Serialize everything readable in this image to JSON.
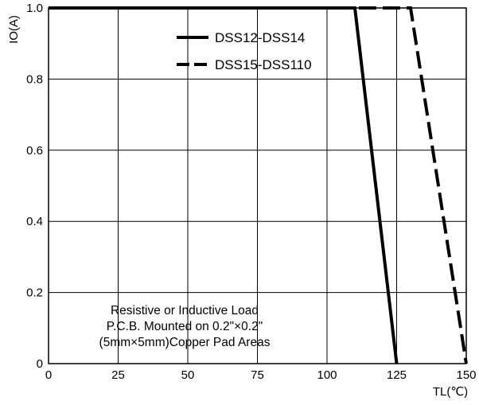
{
  "chart_data": {
    "type": "line",
    "title": "",
    "xlabel": "TL(℃)",
    "ylabel": "IO(A)",
    "xlim": [
      0,
      150
    ],
    "ylim": [
      0,
      1.0
    ],
    "xticks": [
      0,
      25,
      50,
      75,
      100,
      125,
      150
    ],
    "yticks": [
      {
        "value": 0,
        "label": "0"
      },
      {
        "value": 0.2,
        "label": "0.2"
      },
      {
        "value": 0.4,
        "label": "0.4"
      },
      {
        "value": 0.6,
        "label": "0.6"
      },
      {
        "value": 0.8,
        "label": "0.8"
      },
      {
        "value": 1.0,
        "label": "1.0"
      }
    ],
    "grid": true,
    "legend_position": "top-right",
    "series": [
      {
        "name": "DSS12-DSS14",
        "style": "solid",
        "x": [
          0,
          110,
          125
        ],
        "y": [
          1.0,
          1.0,
          0
        ]
      },
      {
        "name": "DSS15-DSS110",
        "style": "dashed",
        "x": [
          0,
          130,
          150
        ],
        "y": [
          1.0,
          1.0,
          0
        ]
      }
    ],
    "annotation": [
      "Resistive or Inductive Load",
      "P.C.B. Mounted on 0.2\"×0.2\"",
      "(5mm×5mm)Copper Pad Areas"
    ]
  }
}
